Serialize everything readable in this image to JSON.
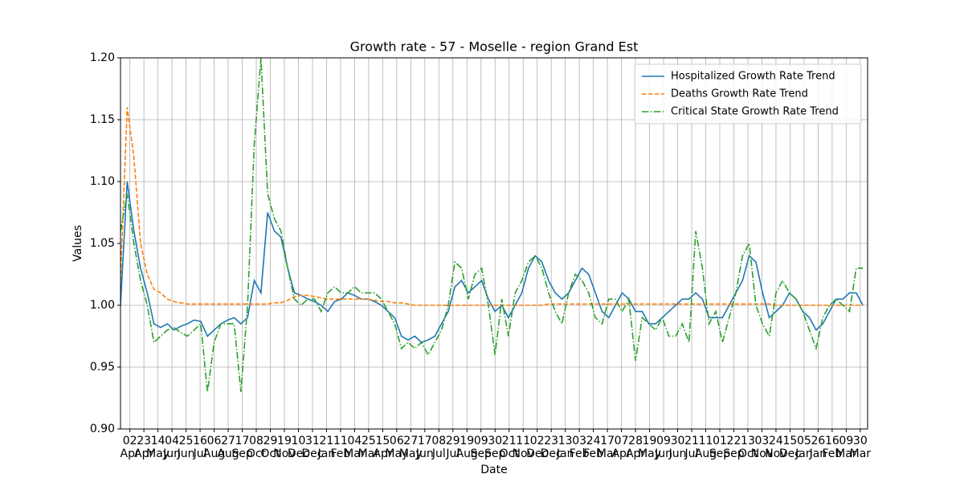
{
  "chart_data": {
    "type": "line",
    "title": "Growth rate - 57 - Moselle - region Grand Est",
    "xlabel": "Date",
    "ylabel": "Values",
    "x": [
      "2020-03-19",
      "2020-03-29",
      "2020-04-08",
      "2020-04-18",
      "2020-04-28",
      "2020-05-08",
      "2020-05-18",
      "2020-05-28",
      "2020-06-07",
      "2020-06-17",
      "2020-06-27",
      "2020-07-07",
      "2020-07-17",
      "2020-07-27",
      "2020-08-06",
      "2020-08-16",
      "2020-08-26",
      "2020-09-05",
      "2020-09-15",
      "2020-09-25",
      "2020-10-05",
      "2020-10-15",
      "2020-10-25",
      "2020-11-04",
      "2020-11-14",
      "2020-11-24",
      "2020-12-04",
      "2020-12-14",
      "2020-12-24",
      "2021-01-03",
      "2021-01-13",
      "2021-01-23",
      "2021-02-02",
      "2021-02-12",
      "2021-02-22",
      "2021-03-04",
      "2021-03-14",
      "2021-03-24",
      "2021-04-03",
      "2021-04-13",
      "2021-04-23",
      "2021-05-03",
      "2021-05-13",
      "2021-05-23",
      "2021-06-02",
      "2021-06-12",
      "2021-06-22",
      "2021-07-02",
      "2021-07-12",
      "2021-07-22",
      "2021-08-01",
      "2021-08-11",
      "2021-08-21",
      "2021-08-31",
      "2021-09-10",
      "2021-09-20",
      "2021-09-30",
      "2021-10-10",
      "2021-10-20",
      "2021-10-30",
      "2021-11-09",
      "2021-11-19",
      "2021-11-29",
      "2021-12-09",
      "2021-12-19",
      "2021-12-29",
      "2022-01-08",
      "2022-01-18",
      "2022-01-28",
      "2022-02-07",
      "2022-02-17",
      "2022-02-27",
      "2022-03-09",
      "2022-03-19",
      "2022-03-29",
      "2022-04-08",
      "2022-04-18",
      "2022-04-28",
      "2022-05-08",
      "2022-05-18",
      "2022-05-28",
      "2022-06-07",
      "2022-06-17",
      "2022-06-27",
      "2022-07-07",
      "2022-07-17",
      "2022-07-27",
      "2022-08-06",
      "2022-08-16",
      "2022-08-26",
      "2022-09-05",
      "2022-09-15",
      "2022-09-25",
      "2022-10-05",
      "2022-10-15",
      "2022-10-25",
      "2022-11-04",
      "2022-11-14",
      "2022-11-24",
      "2022-12-04",
      "2022-12-14",
      "2022-12-24",
      "2023-01-03",
      "2023-01-13",
      "2023-01-23",
      "2023-02-02",
      "2023-02-12",
      "2023-02-22",
      "2023-03-04",
      "2023-03-14",
      "2023-03-24",
      "2023-04-03"
    ],
    "series": [
      {
        "name": "Hospitalized Growth Rate Trend",
        "color": "#1f77b4",
        "dash": "solid",
        "values": [
          1.0,
          1.1,
          1.06,
          1.03,
          1.01,
          0.985,
          0.982,
          0.985,
          0.98,
          0.983,
          0.985,
          0.988,
          0.987,
          0.975,
          0.98,
          0.985,
          0.988,
          0.99,
          0.985,
          0.99,
          1.02,
          1.01,
          1.075,
          1.06,
          1.055,
          1.03,
          1.01,
          1.008,
          1.005,
          1.003,
          1.0,
          0.995,
          1.003,
          1.005,
          1.01,
          1.008,
          1.005,
          1.005,
          1.003,
          1.0,
          0.995,
          0.99,
          0.975,
          0.972,
          0.975,
          0.97,
          0.972,
          0.975,
          0.985,
          0.995,
          1.015,
          1.02,
          1.01,
          1.015,
          1.02,
          1.005,
          0.995,
          1.0,
          0.99,
          1.0,
          1.01,
          1.03,
          1.04,
          1.035,
          1.02,
          1.01,
          1.005,
          1.01,
          1.02,
          1.03,
          1.025,
          1.01,
          0.995,
          0.99,
          1.0,
          1.01,
          1.005,
          0.995,
          0.995,
          0.985,
          0.985,
          0.99,
          0.995,
          1.0,
          1.005,
          1.005,
          1.01,
          1.005,
          0.99,
          0.99,
          0.99,
          1.0,
          1.01,
          1.02,
          1.04,
          1.035,
          1.01,
          0.99,
          0.995,
          1.0,
          1.01,
          1.005,
          0.995,
          0.99,
          0.98,
          0.985,
          0.995,
          1.005,
          1.005,
          1.01,
          1.01,
          1.0
        ]
      },
      {
        "name": "Deaths Growth Rate Trend",
        "color": "#ff7f0e",
        "dash": "dashed",
        "values": [
          1.02,
          1.16,
          1.12,
          1.05,
          1.025,
          1.013,
          1.01,
          1.005,
          1.003,
          1.002,
          1.001,
          1.001,
          1.001,
          1.001,
          1.001,
          1.001,
          1.001,
          1.001,
          1.001,
          1.001,
          1.001,
          1.001,
          1.001,
          1.002,
          1.002,
          1.004,
          1.007,
          1.008,
          1.008,
          1.007,
          1.006,
          1.005,
          1.005,
          1.005,
          1.005,
          1.005,
          1.005,
          1.005,
          1.004,
          1.003,
          1.003,
          1.002,
          1.002,
          1.001,
          1.0,
          1.0,
          1.0,
          1.0,
          1.0,
          1.0,
          1.0,
          1.0,
          1.0,
          1.0,
          1.0,
          1.0,
          1.0,
          1.0,
          1.0,
          1.0,
          1.0,
          1.0,
          1.0,
          1.0,
          1.001,
          1.001,
          1.001,
          1.001,
          1.001,
          1.001,
          1.001,
          1.001,
          1.001,
          1.001,
          1.001,
          1.001,
          1.001,
          1.001,
          1.001,
          1.001,
          1.001,
          1.001,
          1.001,
          1.001,
          1.001,
          1.001,
          1.001,
          1.001,
          1.001,
          1.001,
          1.001,
          1.001,
          1.001,
          1.001,
          1.001,
          1.001,
          1.001,
          1.001,
          1.0,
          1.0,
          1.0,
          1.0,
          1.0,
          1.0,
          1.0,
          1.0,
          1.0,
          1.0,
          1.0,
          1.0,
          1.0,
          1.0
        ]
      },
      {
        "name": "Critical State Growth Rate Trend",
        "color": "#2ca02c",
        "dash": "dashdot",
        "values": [
          1.06,
          1.09,
          1.05,
          1.02,
          1.0,
          0.97,
          0.975,
          0.98,
          0.982,
          0.978,
          0.975,
          0.98,
          0.985,
          0.93,
          0.97,
          0.985,
          0.985,
          0.985,
          0.93,
          1.0,
          1.13,
          1.2,
          1.09,
          1.07,
          1.06,
          1.03,
          1.005,
          1.0,
          1.005,
          1.005,
          0.995,
          1.01,
          1.015,
          1.01,
          1.01,
          1.015,
          1.01,
          1.01,
          1.01,
          1.005,
          0.995,
          0.985,
          0.965,
          0.97,
          0.965,
          0.97,
          0.96,
          0.97,
          0.98,
          1.0,
          1.035,
          1.03,
          1.005,
          1.025,
          1.03,
          1.0,
          0.96,
          1.005,
          0.975,
          1.01,
          1.02,
          1.035,
          1.04,
          1.03,
          1.01,
          0.995,
          0.985,
          1.01,
          1.025,
          1.02,
          1.01,
          0.99,
          0.985,
          1.005,
          1.005,
          0.995,
          1.005,
          0.955,
          0.99,
          0.985,
          0.98,
          0.99,
          0.975,
          0.975,
          0.985,
          0.97,
          1.06,
          1.03,
          0.985,
          0.995,
          0.97,
          0.99,
          1.01,
          1.04,
          1.05,
          1.0,
          0.985,
          0.975,
          1.01,
          1.02,
          1.01,
          1.005,
          0.995,
          0.98,
          0.965,
          0.99,
          1.0,
          1.005,
          1.0,
          0.995,
          1.03,
          1.03
        ]
      }
    ],
    "xlim": [
      "2020-03-19",
      "2023-04-10"
    ],
    "xticks": [
      {
        "value": "2020-04-02",
        "label": "02\nApr"
      },
      {
        "value": "2020-04-23",
        "label": "23\nApr"
      },
      {
        "value": "2020-05-14",
        "label": "14\nMay"
      },
      {
        "value": "2020-06-04",
        "label": "04\nJun"
      },
      {
        "value": "2020-06-25",
        "label": "25\nJun"
      },
      {
        "value": "2020-07-16",
        "label": "16\nJul"
      },
      {
        "value": "2020-08-06",
        "label": "06\nAug"
      },
      {
        "value": "2020-08-27",
        "label": "27\nAug"
      },
      {
        "value": "2020-09-17",
        "label": "17\nSep"
      },
      {
        "value": "2020-10-08",
        "label": "08\nOct"
      },
      {
        "value": "2020-10-29",
        "label": "29\nOct"
      },
      {
        "value": "2020-11-19",
        "label": "19\nNov"
      },
      {
        "value": "2020-12-10",
        "label": "10\nDec"
      },
      {
        "value": "2020-12-31",
        "label": "31\nDec"
      },
      {
        "value": "2021-01-21",
        "label": "21\nJan"
      },
      {
        "value": "2021-02-11",
        "label": "11\nFeb"
      },
      {
        "value": "2021-03-04",
        "label": "04\nMar"
      },
      {
        "value": "2021-03-25",
        "label": "25\nMar"
      },
      {
        "value": "2021-04-15",
        "label": "15\nApr"
      },
      {
        "value": "2021-05-06",
        "label": "06\nMay"
      },
      {
        "value": "2021-05-27",
        "label": "27\nMay"
      },
      {
        "value": "2021-06-17",
        "label": "17\nJun"
      },
      {
        "value": "2021-07-08",
        "label": "08\nJul"
      },
      {
        "value": "2021-07-29",
        "label": "29\nJul"
      },
      {
        "value": "2021-08-19",
        "label": "19\nAug"
      },
      {
        "value": "2021-09-09",
        "label": "09\nSep"
      },
      {
        "value": "2021-09-30",
        "label": "30\nSep"
      },
      {
        "value": "2021-10-21",
        "label": "21\nOct"
      },
      {
        "value": "2021-11-11",
        "label": "11\nNov"
      },
      {
        "value": "2021-12-02",
        "label": "02\nDec"
      },
      {
        "value": "2021-12-23",
        "label": "23\nDec"
      },
      {
        "value": "2022-01-13",
        "label": "13\nJan"
      },
      {
        "value": "2022-02-03",
        "label": "03\nFeb"
      },
      {
        "value": "2022-02-24",
        "label": "24\nFeb"
      },
      {
        "value": "2022-03-17",
        "label": "17\nMar"
      },
      {
        "value": "2022-04-07",
        "label": "07\nApr"
      },
      {
        "value": "2022-04-28",
        "label": "28\nApr"
      },
      {
        "value": "2022-05-19",
        "label": "19\nMay"
      },
      {
        "value": "2022-06-09",
        "label": "09\nJun"
      },
      {
        "value": "2022-06-30",
        "label": "30\nJun"
      },
      {
        "value": "2022-07-21",
        "label": "21\nJul"
      },
      {
        "value": "2022-08-11",
        "label": "11\nAug"
      },
      {
        "value": "2022-09-01",
        "label": "01\nSep"
      },
      {
        "value": "2022-09-22",
        "label": "22\nSep"
      },
      {
        "value": "2022-10-13",
        "label": "13\nOct"
      },
      {
        "value": "2022-11-03",
        "label": "03\nNov"
      },
      {
        "value": "2022-11-24",
        "label": "24\nNov"
      },
      {
        "value": "2022-12-15",
        "label": "15\nDec"
      },
      {
        "value": "2023-01-05",
        "label": "05\nJan"
      },
      {
        "value": "2023-01-26",
        "label": "26\nJan"
      },
      {
        "value": "2023-02-16",
        "label": "16\nFeb"
      },
      {
        "value": "2023-03-09",
        "label": "09\nMar"
      },
      {
        "value": "2023-03-30",
        "label": "30\nMar"
      }
    ],
    "ylim": [
      0.9,
      1.2
    ],
    "yticks": [
      {
        "value": 0.9,
        "label": "0.90"
      },
      {
        "value": 0.95,
        "label": "0.95"
      },
      {
        "value": 1.0,
        "label": "1.00"
      },
      {
        "value": 1.05,
        "label": "1.05"
      },
      {
        "value": 1.1,
        "label": "1.10"
      },
      {
        "value": 1.15,
        "label": "1.15"
      },
      {
        "value": 1.2,
        "label": "1.20"
      }
    ],
    "grid": true,
    "legend": "upper right"
  }
}
